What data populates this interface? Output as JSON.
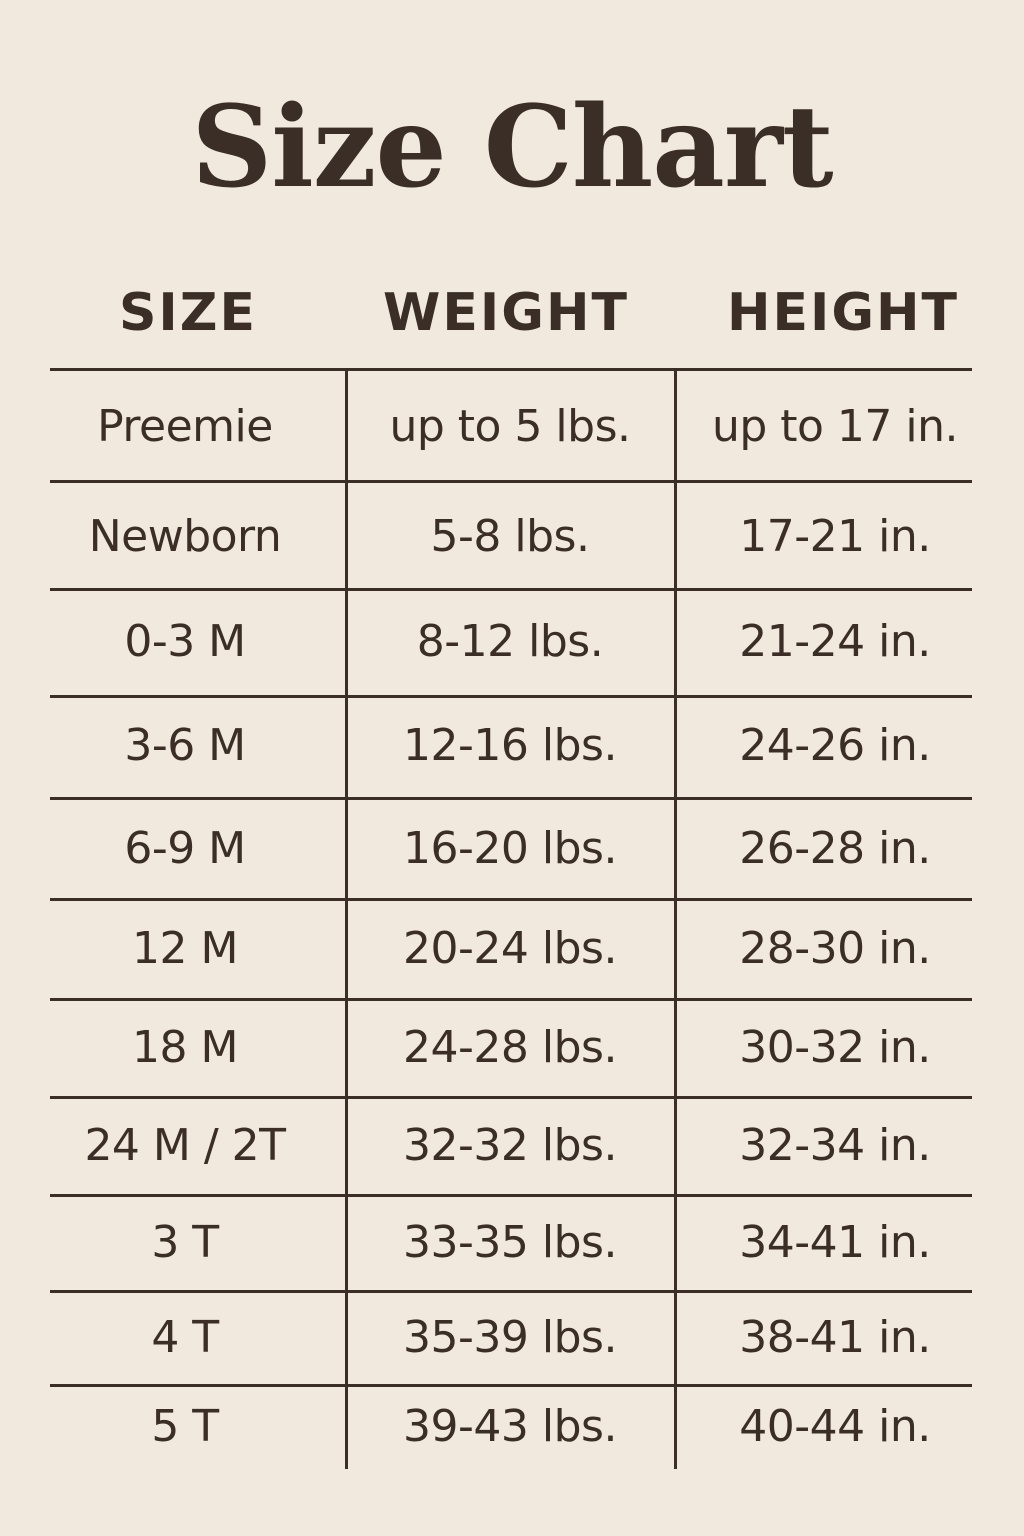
{
  "title": "Size Chart",
  "headers": [
    "SIZE",
    "WEIGHT",
    "HEIGHT"
  ],
  "rows": [
    [
      "Preemie",
      "up to 5 lbs.",
      "up to 17 in."
    ],
    [
      "Newborn",
      "5-8 lbs.",
      "17-21 in."
    ],
    [
      "0-3 M",
      "8-12 lbs.",
      "21-24 in."
    ],
    [
      "3-6 M",
      "12-16 lbs.",
      "24-26 in."
    ],
    [
      "6-9 M",
      "16-20 lbs.",
      "26-28 in."
    ],
    [
      "12 M",
      "20-24 lbs.",
      "28-30 in."
    ],
    [
      "18 M",
      "24-28 lbs.",
      "30-32 in."
    ],
    [
      "24 M / 2T",
      "32-32 lbs.",
      "32-34 in."
    ],
    [
      "3 T",
      "33-35 lbs.",
      "34-41 in."
    ],
    [
      "4 T",
      "35-39 lbs.",
      "38-41 in."
    ],
    [
      "5 T",
      "39-43 lbs.",
      "40-44 in."
    ]
  ],
  "colors": {
    "background": "#f1e9dd",
    "text": "#3a2e26"
  }
}
